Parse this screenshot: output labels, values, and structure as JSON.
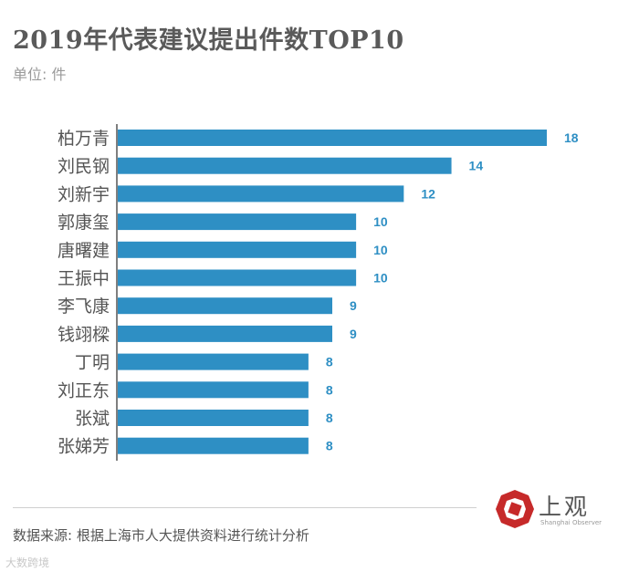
{
  "title": "2019年代表建议提出件数TOP10",
  "unit": "单位: 件",
  "source": "数据来源: 根据上海市人大提供资料进行统计分析",
  "logo": {
    "name": "上观",
    "subtitle": "Shanghai Observer"
  },
  "watermark": "大数跨境",
  "colors": {
    "bar": "#2e8fc4",
    "label": "#2e8fc4",
    "axis": "#555555",
    "title": "#5a5a5a",
    "logo_red": "#c62a2a"
  },
  "chart_data": {
    "type": "bar",
    "orientation": "horizontal",
    "title": "2019年代表建议提出件数TOP10",
    "xlabel": "",
    "ylabel": "",
    "xlim": [
      0,
      18
    ],
    "grid": false,
    "legend": "none",
    "categories": [
      "柏万青",
      "刘民钢",
      "刘新宇",
      "郭康玺",
      "唐曙建",
      "王振中",
      "李飞康",
      "钱翊樑",
      "丁明",
      "刘正东",
      "张斌",
      "张娣芳"
    ],
    "values": [
      18,
      14,
      12,
      10,
      10,
      10,
      9,
      9,
      8,
      8,
      8,
      8
    ]
  }
}
